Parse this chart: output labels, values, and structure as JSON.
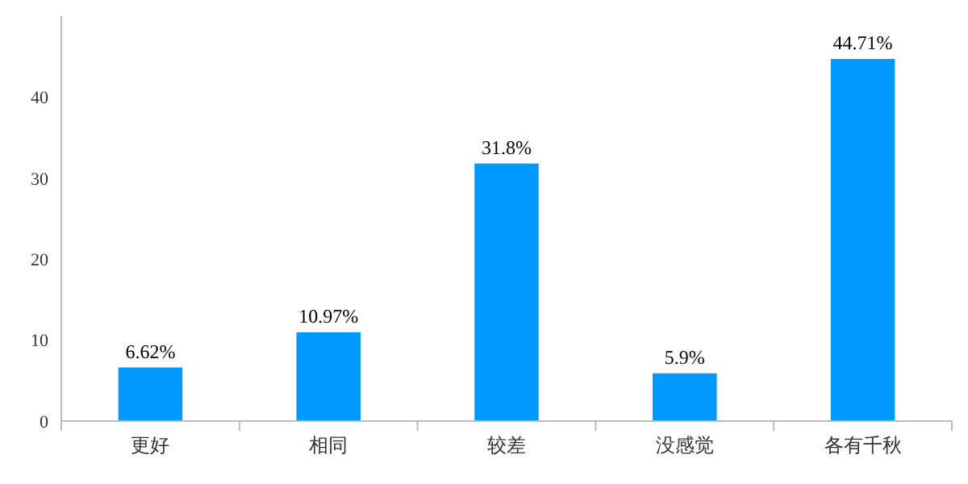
{
  "chart_data": {
    "type": "bar",
    "categories": [
      "更好",
      "相同",
      "较差",
      "没感觉",
      "各有千秋"
    ],
    "values": [
      6.62,
      10.97,
      31.8,
      5.9,
      44.71
    ],
    "value_labels": [
      "6.62%",
      "10.97%",
      "31.8%",
      "5.9%",
      "44.71%"
    ],
    "color": "#0099ff",
    "ylim": [
      0,
      50
    ],
    "yticks": [
      0,
      10,
      20,
      30,
      40
    ],
    "grid": false
  }
}
